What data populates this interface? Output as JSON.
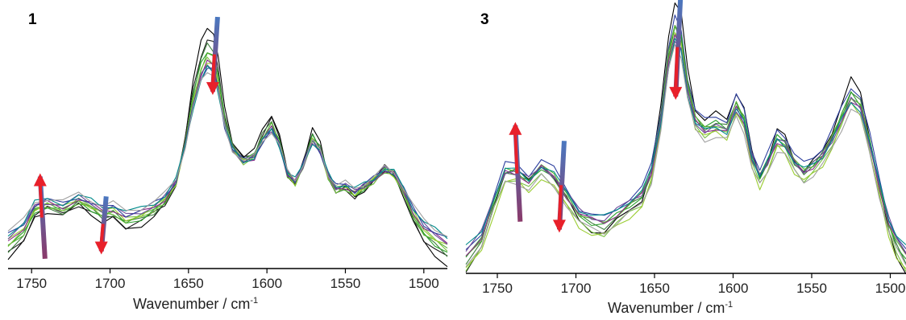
{
  "chart_data": [
    {
      "type": "line",
      "panel_label": "1",
      "xlabel": "Wavenumber / cm",
      "xlabel_superscript": "-1",
      "x_reversed": true,
      "xlim": [
        1765,
        1485
      ],
      "ylim": [
        0,
        1
      ],
      "x_ticks": [
        1750,
        1700,
        1650,
        1600,
        1550,
        1500
      ],
      "grid": false,
      "legend": "none",
      "base_curve": {
        "x": [
          1765,
          1755,
          1748,
          1740,
          1730,
          1720,
          1712,
          1705,
          1698,
          1690,
          1680,
          1672,
          1665,
          1658,
          1652,
          1647,
          1642,
          1638,
          1634,
          1631,
          1627,
          1622,
          1615,
          1608,
          1603,
          1597,
          1592,
          1587,
          1582,
          1577,
          1571,
          1566,
          1561,
          1556,
          1550,
          1544,
          1538,
          1532,
          1525,
          1519,
          1513,
          1507,
          1500,
          1493,
          1485
        ],
        "y": [
          0.04,
          0.1,
          0.2,
          0.22,
          0.2,
          0.24,
          0.21,
          0.18,
          0.19,
          0.15,
          0.17,
          0.2,
          0.24,
          0.32,
          0.5,
          0.7,
          0.84,
          0.9,
          0.88,
          0.78,
          0.6,
          0.48,
          0.42,
          0.44,
          0.52,
          0.58,
          0.5,
          0.36,
          0.32,
          0.4,
          0.52,
          0.47,
          0.35,
          0.29,
          0.3,
          0.27,
          0.3,
          0.33,
          0.38,
          0.36,
          0.28,
          0.18,
          0.1,
          0.06,
          0.02
        ]
      },
      "traces": [
        {
          "color": "#000000",
          "lift": -0.03,
          "gain": 1.06
        },
        {
          "color": "#1a1a1a",
          "lift": 0.0,
          "gain": 1.0
        },
        {
          "color": "#3f7f3f",
          "lift": 0.02,
          "gain": 0.97
        },
        {
          "color": "#2ca02c",
          "lift": 0.03,
          "gain": 0.95
        },
        {
          "color": "#55b030",
          "lift": 0.04,
          "gain": 0.93
        },
        {
          "color": "#7ac143",
          "lift": 0.05,
          "gain": 0.91
        },
        {
          "color": "#9acd32",
          "lift": 0.06,
          "gain": 0.9
        },
        {
          "color": "#8b2b8b",
          "lift": 0.07,
          "gain": 0.89
        },
        {
          "color": "#6c4b9a",
          "lift": 0.08,
          "gain": 0.88
        },
        {
          "color": "#2d3f9e",
          "lift": 0.09,
          "gain": 0.87
        },
        {
          "color": "#008b8b",
          "lift": 0.1,
          "gain": 0.86
        },
        {
          "color": "#a0a0a0",
          "lift": 0.11,
          "gain": 0.85
        }
      ],
      "arrows": [
        {
          "x": 1743,
          "from": 0.02,
          "to": 0.35,
          "direction": "up"
        },
        {
          "x": 1704,
          "from": 0.27,
          "to": 0.05,
          "direction": "down"
        },
        {
          "x": 1633,
          "from": 0.99,
          "to": 0.69,
          "direction": "down"
        }
      ]
    },
    {
      "type": "line",
      "panel_label": "3",
      "xlabel": "Wavenumber / cm",
      "xlabel_superscript": "-1",
      "x_reversed": true,
      "xlim": [
        1770,
        1490
      ],
      "ylim": [
        0,
        1
      ],
      "x_ticks": [
        1750,
        1700,
        1650,
        1600,
        1550,
        1500
      ],
      "grid": false,
      "legend": "none",
      "base_curve": {
        "x": [
          1770,
          1760,
          1752,
          1745,
          1738,
          1730,
          1722,
          1714,
          1706,
          1698,
          1690,
          1682,
          1674,
          1666,
          1658,
          1652,
          1646,
          1641,
          1637,
          1633,
          1629,
          1624,
          1618,
          1611,
          1604,
          1598,
          1593,
          1588,
          1583,
          1578,
          1572,
          1567,
          1561,
          1555,
          1549,
          1543,
          1537,
          1531,
          1525,
          1519,
          1513,
          1507,
          1501,
          1496,
          1490
        ],
        "y": [
          0.02,
          0.1,
          0.26,
          0.38,
          0.38,
          0.34,
          0.4,
          0.36,
          0.28,
          0.2,
          0.17,
          0.16,
          0.2,
          0.24,
          0.28,
          0.38,
          0.6,
          0.86,
          0.98,
          0.93,
          0.74,
          0.6,
          0.56,
          0.58,
          0.56,
          0.66,
          0.6,
          0.44,
          0.36,
          0.42,
          0.52,
          0.5,
          0.42,
          0.38,
          0.41,
          0.45,
          0.52,
          0.61,
          0.7,
          0.66,
          0.5,
          0.32,
          0.16,
          0.08,
          0.02
        ]
      },
      "traces": [
        {
          "color": "#000000",
          "lift": -0.04,
          "gain": 1.05
        },
        {
          "color": "#2d3f9e",
          "lift": 0.05,
          "gain": 0.98
        },
        {
          "color": "#3f7f3f",
          "lift": 0.01,
          "gain": 0.96
        },
        {
          "color": "#2ca02c",
          "lift": 0.02,
          "gain": 0.95
        },
        {
          "color": "#55b030",
          "lift": 0.03,
          "gain": 0.94
        },
        {
          "color": "#7ac143",
          "lift": -0.02,
          "gain": 0.93
        },
        {
          "color": "#9acd32",
          "lift": -0.03,
          "gain": 0.92
        },
        {
          "color": "#8b2b8b",
          "lift": 0.04,
          "gain": 0.91
        },
        {
          "color": "#6c4b9a",
          "lift": 0.06,
          "gain": 0.9
        },
        {
          "color": "#008b8b",
          "lift": 0.07,
          "gain": 0.89
        },
        {
          "color": "#a0a0a0",
          "lift": 0.0,
          "gain": 0.88
        }
      ],
      "arrows": [
        {
          "x": 1737,
          "from": 0.18,
          "to": 0.55,
          "direction": "up"
        },
        {
          "x": 1709,
          "from": 0.49,
          "to": 0.15,
          "direction": "down"
        },
        {
          "x": 1635,
          "from": 1.04,
          "to": 0.66,
          "direction": "down"
        }
      ]
    }
  ],
  "arrow_colors": {
    "gradient_start": "#4a78c0",
    "gradient_end": "#8a3a6a",
    "head": "#e8202a"
  }
}
